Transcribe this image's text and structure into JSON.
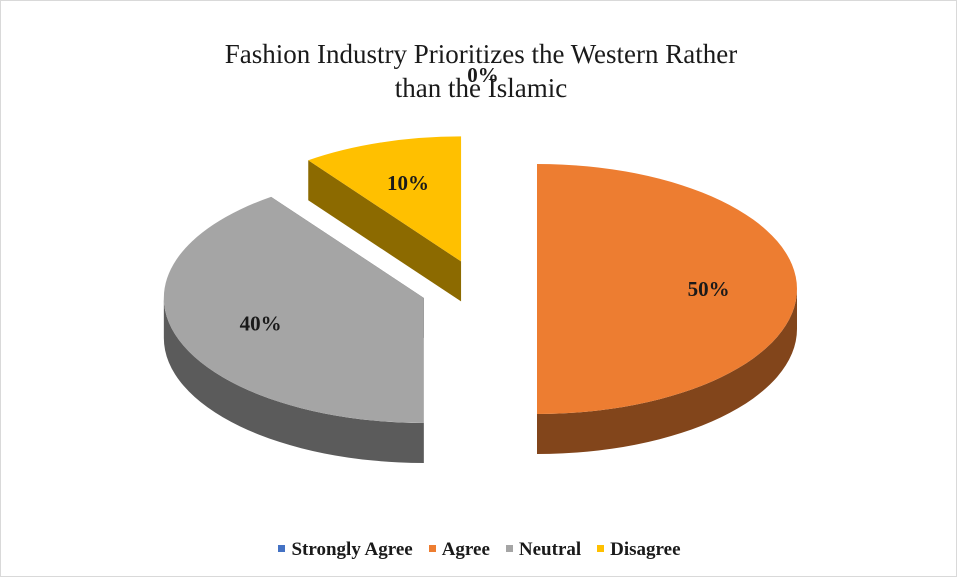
{
  "chart_data": {
    "type": "pie",
    "title": "Fashion Industry Prioritizes the Western Rather than the Islamic",
    "categories": [
      "Strongly Agree",
      "Agree",
      "Neutral",
      "Disagree"
    ],
    "values": [
      0,
      50,
      40,
      10
    ],
    "data_labels": [
      "0%",
      "50%",
      "40%",
      "10%"
    ],
    "colors": [
      "#4472C4",
      "#ED7D31",
      "#A5A5A5",
      "#FFC000"
    ],
    "style": "3d-exploded",
    "legend_position": "bottom"
  }
}
